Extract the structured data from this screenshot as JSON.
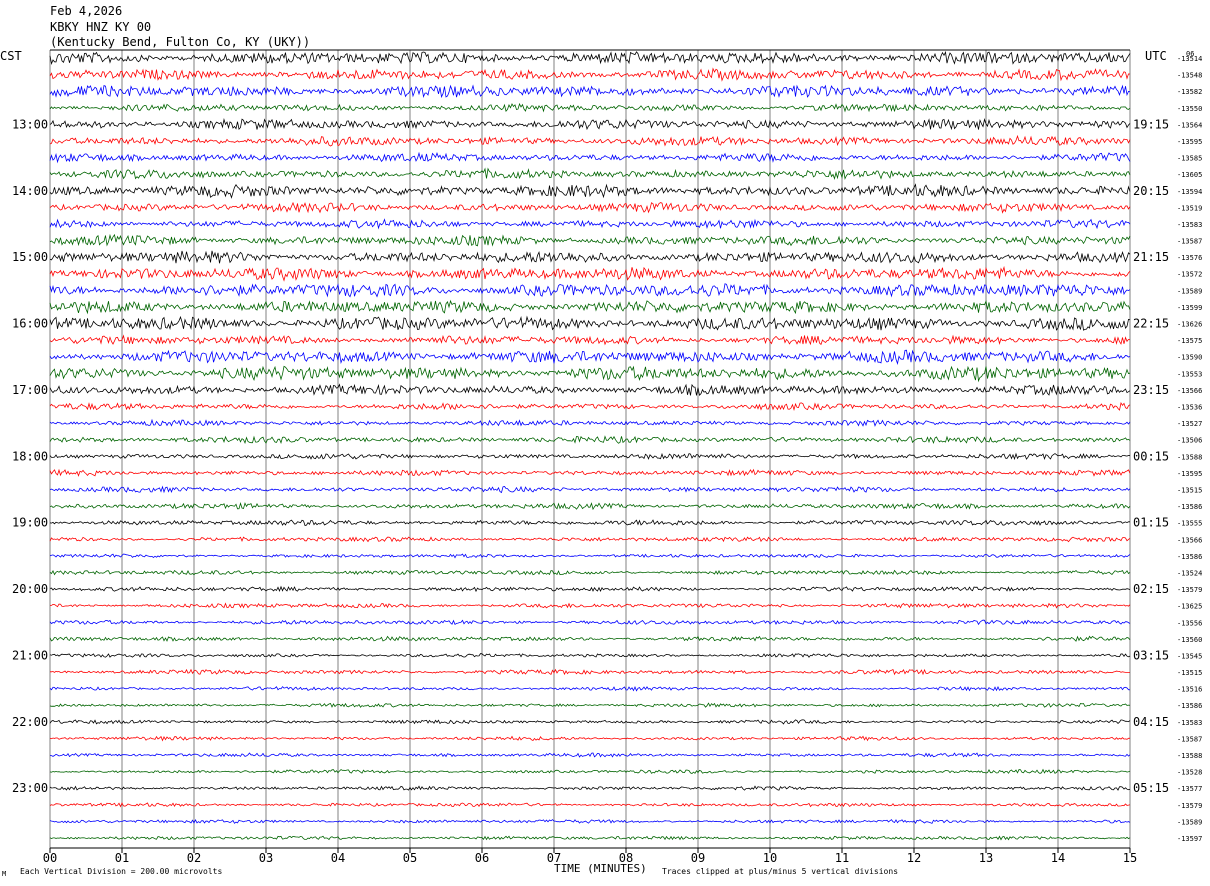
{
  "header": {
    "date": "Feb 4,2026",
    "station_line": "KBKY HNZ KY 00",
    "location_line": "(Kentucky Bend, Fulton Co, KY (UKY))"
  },
  "left_timezone": "CST",
  "right_timezone": "UTC",
  "footer": {
    "scale_note": "Each Vertical Division =  200.00 microvolts",
    "xlabel": "TIME (MINUTES)",
    "clip_note": "Traces clipped at plus/minus 5 vertical divisions",
    "corner_mark": "M"
  },
  "colors": {
    "trace_cycle": [
      "#000000",
      "#ff0000",
      "#0000ff",
      "#006400"
    ],
    "grid": "#808080"
  },
  "chart_data": {
    "type": "line",
    "subtype": "helicorder",
    "xlim": [
      0,
      15
    ],
    "x_tick_labels": [
      "00",
      "01",
      "02",
      "03",
      "04",
      "05",
      "06",
      "07",
      "08",
      "09",
      "10",
      "11",
      "12",
      "13",
      "14",
      "15"
    ],
    "left_hour_labels": [
      "13:00",
      "14:00",
      "15:00",
      "16:00",
      "17:00",
      "18:00",
      "19:00",
      "20:00",
      "21:00",
      "22:00",
      "23:00"
    ],
    "right_hour_labels": [
      "19:15",
      "20:15",
      "21:15",
      "22:15",
      "23:15",
      "00:15",
      "01:15",
      "02:15",
      "03:15",
      "04:15",
      "05:15"
    ],
    "first_right_label": "06",
    "row_values": [
      "-13514",
      "-13548",
      "-13582",
      "-13550",
      "-13564",
      "-13595",
      "-13585",
      "-13605",
      "-13594",
      "-13519",
      "-13583",
      "-13587",
      "-13576",
      "-13572",
      "-13589",
      "-13599",
      "-13626",
      "-13575",
      "-13590",
      "-13553",
      "-13566",
      "-13536",
      "-13527",
      "-13506",
      "-13588",
      "-13595",
      "-13515",
      "-13586",
      "-13555",
      "-13566",
      "-13586",
      "-13524",
      "-13579",
      "-13625",
      "-13556",
      "-13560",
      "-13545",
      "-13515",
      "-13516",
      "-13586",
      "-13583",
      "-13587",
      "-13588",
      "-13528",
      "-13577",
      "-13579",
      "-13589",
      "-13597"
    ],
    "row_amplitudes": [
      1.4,
      1.2,
      1.3,
      0.8,
      1.1,
      1.0,
      0.9,
      1.0,
      1.3,
      1.0,
      0.9,
      1.1,
      1.3,
      1.4,
      1.5,
      1.4,
      1.5,
      1.0,
      1.4,
      1.5,
      1.1,
      0.7,
      0.6,
      0.7,
      0.6,
      0.6,
      0.6,
      0.6,
      0.6,
      0.5,
      0.4,
      0.5,
      0.5,
      0.5,
      0.5,
      0.5,
      0.4,
      0.5,
      0.4,
      0.4,
      0.4,
      0.4,
      0.4,
      0.4,
      0.4,
      0.4,
      0.4,
      0.4
    ],
    "scale_microvolts_per_division": 200.0,
    "clip_divisions": 5
  }
}
